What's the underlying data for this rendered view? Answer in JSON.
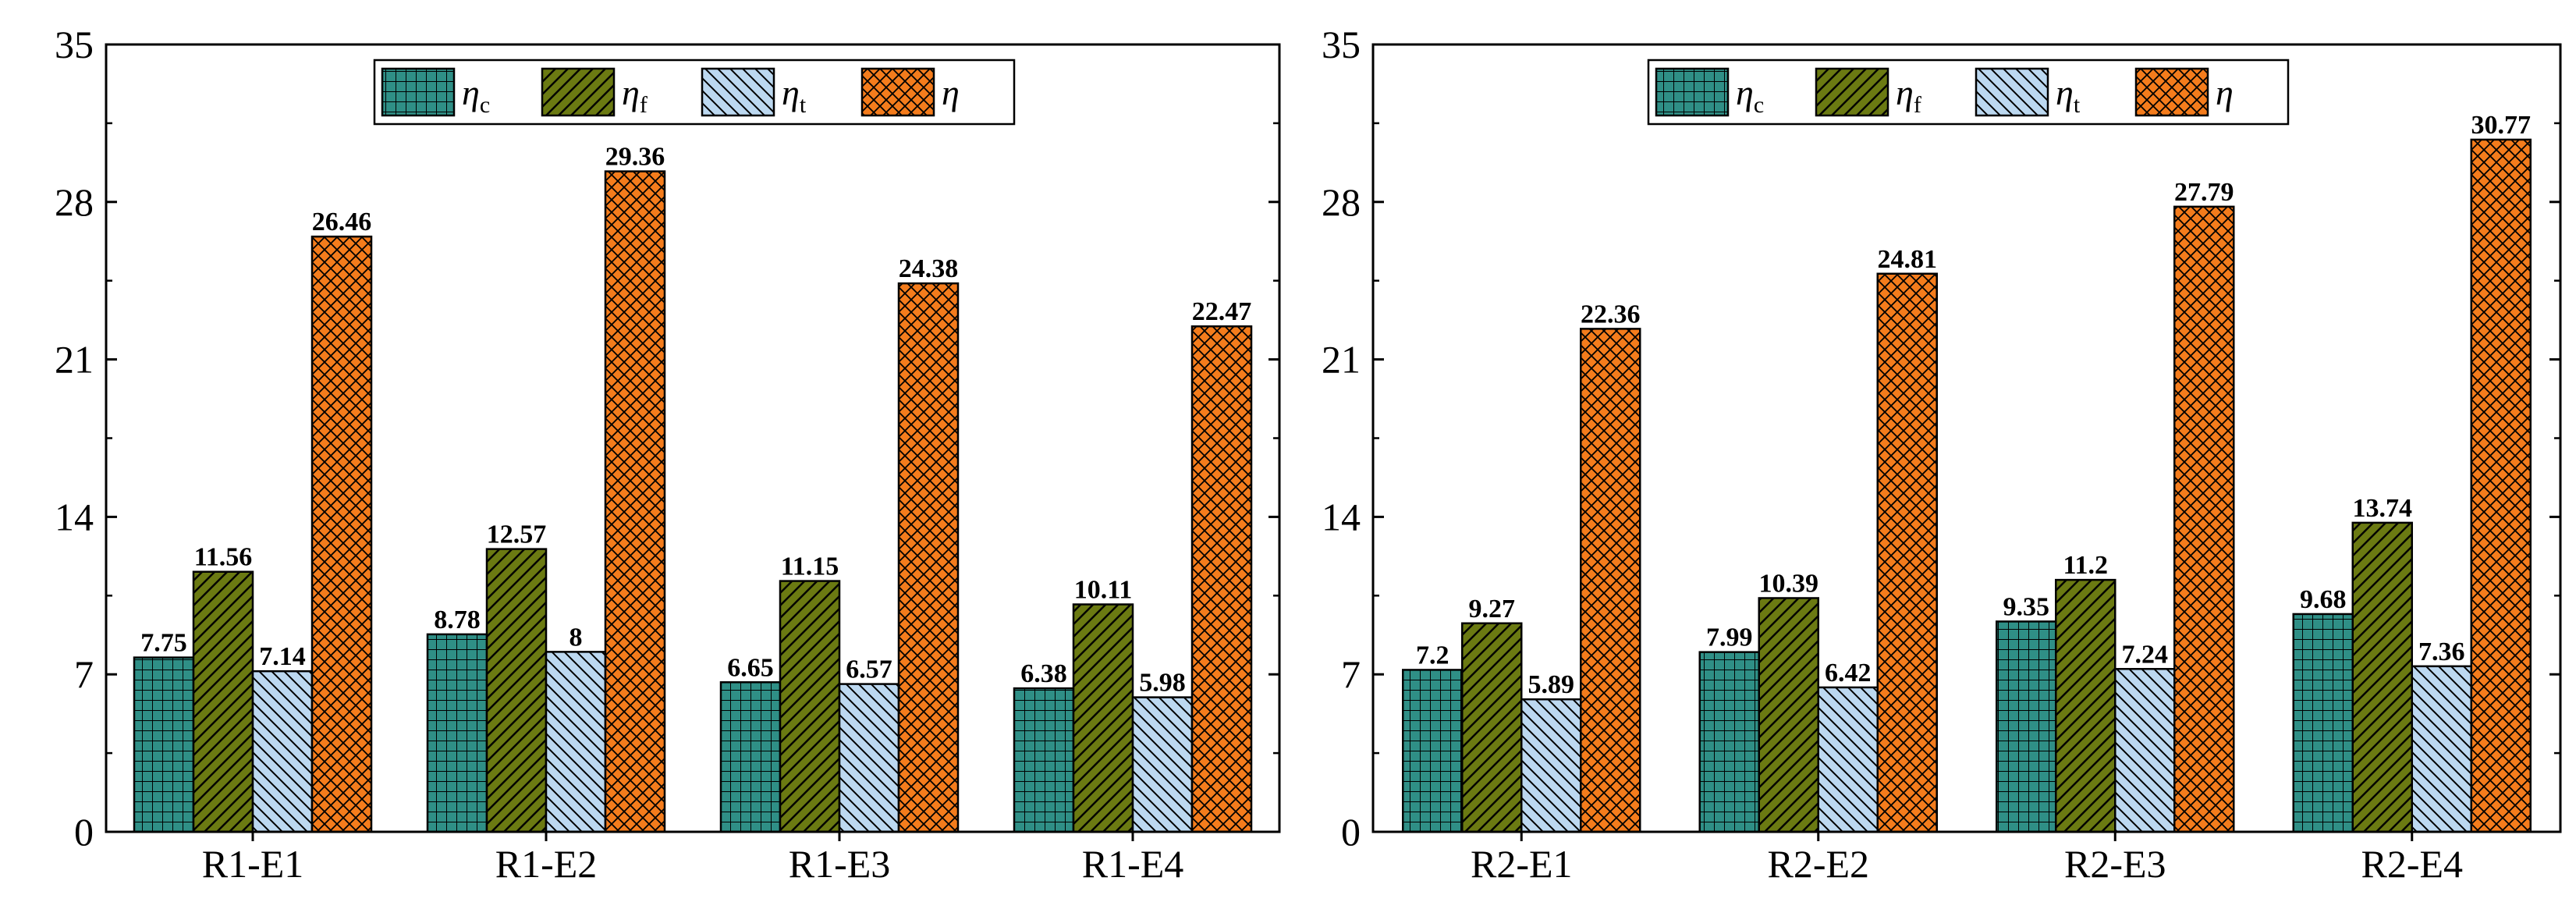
{
  "chart_data": [
    {
      "type": "bar",
      "categories": [
        "R1-E1",
        "R1-E2",
        "R1-E3",
        "R1-E4"
      ],
      "series": [
        {
          "key": "c",
          "name": "η_c",
          "symbol": "η",
          "sub": "c",
          "values": [
            7.75,
            8.78,
            6.65,
            6.38
          ],
          "labels": [
            "7.75",
            "8.78",
            "6.65",
            "6.38"
          ],
          "color": "#2f8f86",
          "pattern": "grid"
        },
        {
          "key": "f",
          "name": "η_f",
          "symbol": "η",
          "sub": "f",
          "values": [
            11.56,
            12.57,
            11.15,
            10.11
          ],
          "labels": [
            "11.56",
            "12.57",
            "11.15",
            "10.11"
          ],
          "color": "#6b7a12",
          "pattern": "diag"
        },
        {
          "key": "t",
          "name": "η_t",
          "symbol": "η",
          "sub": "t",
          "values": [
            7.14,
            8,
            6.57,
            5.98
          ],
          "labels": [
            "7.14",
            "8",
            "6.57",
            "5.98"
          ],
          "color": "#bcd8f0",
          "pattern": "backdiag"
        },
        {
          "key": "e",
          "name": "η",
          "symbol": "η",
          "sub": "",
          "values": [
            26.46,
            29.36,
            24.38,
            22.47
          ],
          "labels": [
            "26.46",
            "29.36",
            "24.38",
            "22.47"
          ],
          "color": "#f47c1c",
          "pattern": "cross"
        }
      ],
      "ylim": [
        0,
        35
      ],
      "yticks": [
        "0",
        "7",
        "14",
        "21",
        "28",
        "35"
      ],
      "legend": "top-center"
    },
    {
      "type": "bar",
      "categories": [
        "R2-E1",
        "R2-E2",
        "R2-E3",
        "R2-E4"
      ],
      "series": [
        {
          "key": "c",
          "name": "η_c",
          "symbol": "η",
          "sub": "c",
          "values": [
            7.2,
            7.99,
            9.35,
            9.68
          ],
          "labels": [
            "7.2",
            "7.99",
            "9.35",
            "9.68"
          ],
          "color": "#2f8f86",
          "pattern": "grid"
        },
        {
          "key": "f",
          "name": "η_f",
          "symbol": "η",
          "sub": "f",
          "values": [
            9.27,
            10.39,
            11.2,
            13.74
          ],
          "labels": [
            "9.27",
            "10.39",
            "11.2",
            "13.74"
          ],
          "color": "#6b7a12",
          "pattern": "diag"
        },
        {
          "key": "t",
          "name": "η_t",
          "symbol": "η",
          "sub": "t",
          "values": [
            5.89,
            6.42,
            7.24,
            7.36
          ],
          "labels": [
            "5.89",
            "6.42",
            "7.24",
            "7.36"
          ],
          "color": "#bcd8f0",
          "pattern": "backdiag"
        },
        {
          "key": "e",
          "name": "η",
          "symbol": "η",
          "sub": "",
          "values": [
            22.36,
            24.81,
            27.79,
            30.77
          ],
          "labels": [
            "22.36",
            "24.81",
            "27.79",
            "30.77"
          ],
          "color": "#f47c1c",
          "pattern": "cross"
        }
      ],
      "ylim": [
        0,
        35
      ],
      "yticks": [
        "0",
        "7",
        "14",
        "21",
        "28",
        "35"
      ],
      "legend": "top-center"
    }
  ]
}
